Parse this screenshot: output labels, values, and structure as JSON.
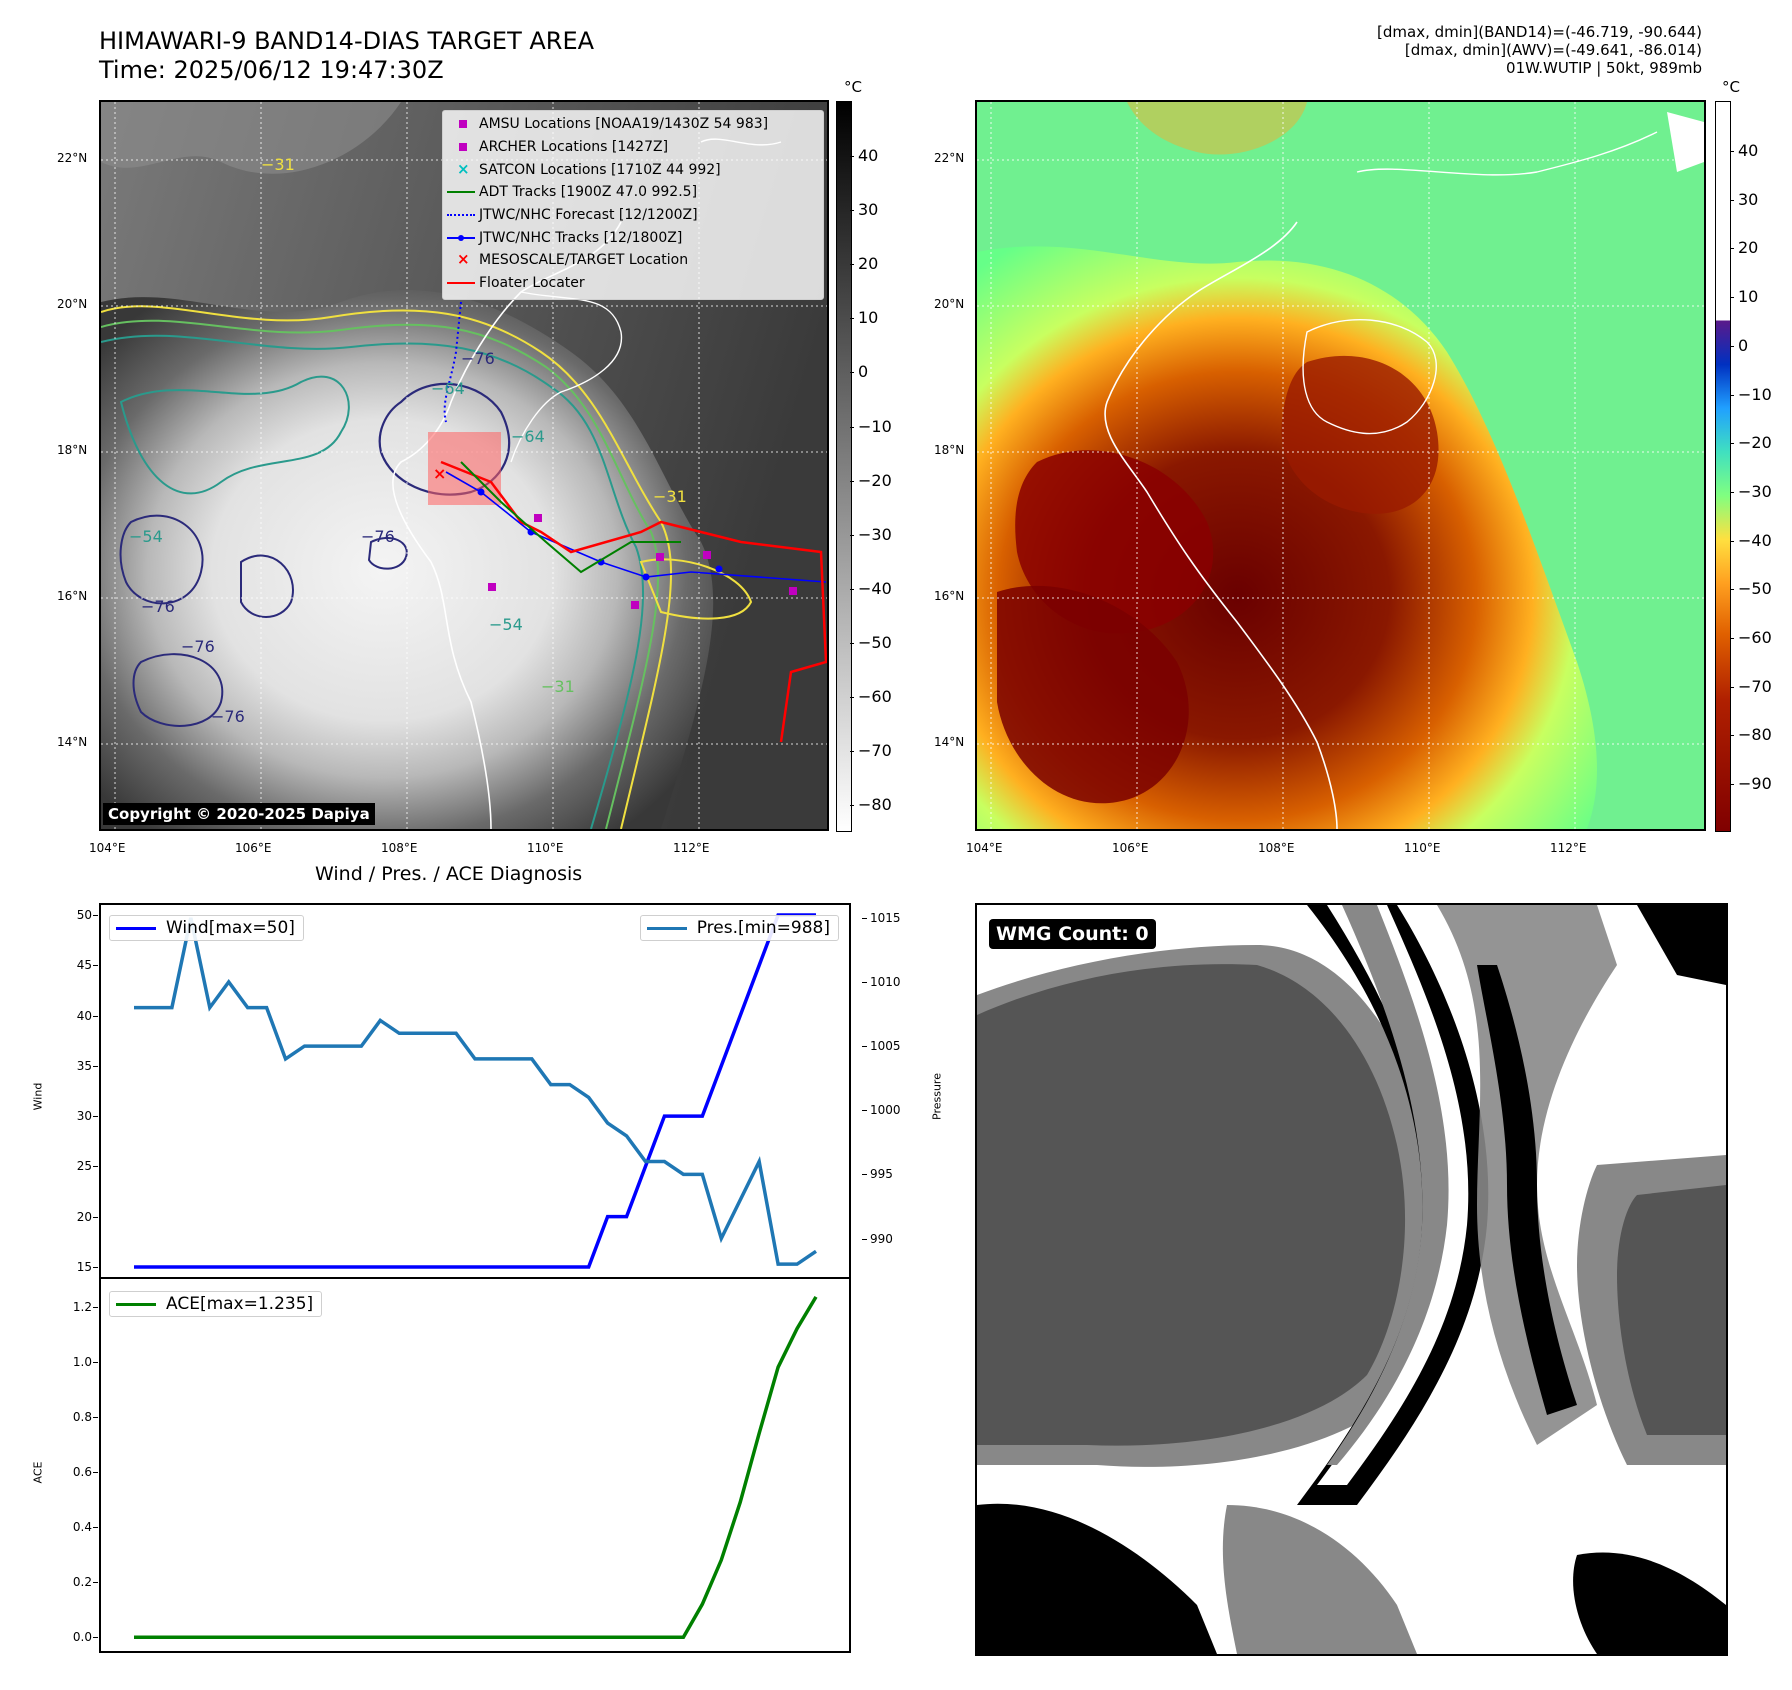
{
  "header": {
    "title_line1": "HIMAWARI-9 BAND14-DIAS TARGET AREA",
    "title_line2": "Time: 2025/06/12 19:47:30Z",
    "info_line1": "[dmax, dmin](BAND14)=(-46.719, -90.644)",
    "info_line2": "[dmax, dmin](AWV)=(-49.641, -86.014)",
    "info_line3": "01W.WUTIP | 50kt, 989mb"
  },
  "map_left": {
    "lat_labels": [
      "22°N",
      "20°N",
      "18°N",
      "16°N",
      "14°N"
    ],
    "lon_labels": [
      "104°E",
      "106°E",
      "108°E",
      "110°E",
      "112°E"
    ],
    "colorbar_unit": "°C",
    "colorbar_ticks": [
      "40",
      "30",
      "20",
      "10",
      "0",
      "−10",
      "−20",
      "−30",
      "−40",
      "−50",
      "−60",
      "−70",
      "−80"
    ],
    "contour_labels": [
      "−76",
      "−64",
      "−64",
      "−54",
      "−76",
      "−76",
      "−76",
      "−76",
      "−54",
      "−31",
      "−31",
      "−31"
    ],
    "copyright": "Copyright © 2020-2025 Dapiya",
    "legend": [
      {
        "label": "AMSU Locations [NOAA19/1430Z 54 983]",
        "symbol": "square",
        "color": "#c000c0"
      },
      {
        "label": "ARCHER Locations [1427Z]",
        "symbol": "square",
        "color": "#c000c0"
      },
      {
        "label": "SATCON Locations [1710Z 44 992]",
        "symbol": "x",
        "color": "#00c0c0"
      },
      {
        "label": "ADT Tracks [1900Z 47.0 992.5]",
        "symbol": "line",
        "color": "#008000"
      },
      {
        "label": "JTWC/NHC Forecast [12/1200Z]",
        "symbol": "dotted",
        "color": "#0000ff"
      },
      {
        "label": "JTWC/NHC Tracks [12/1800Z]",
        "symbol": "line-dot",
        "color": "#0000ff"
      },
      {
        "label": "MESOSCALE/TARGET Location",
        "symbol": "x",
        "color": "#ff0000"
      },
      {
        "label": "Floater Locater",
        "symbol": "line",
        "color": "#ff0000"
      }
    ]
  },
  "map_right": {
    "lat_labels": [
      "22°N",
      "20°N",
      "18°N",
      "16°N",
      "14°N"
    ],
    "lon_labels": [
      "104°E",
      "106°E",
      "108°E",
      "110°E",
      "112°E"
    ],
    "colorbar_unit": "°C",
    "colorbar_ticks": [
      "40",
      "30",
      "20",
      "10",
      "0",
      "−10",
      "−20",
      "−30",
      "−40",
      "−50",
      "−60",
      "−70",
      "−80",
      "−90"
    ]
  },
  "diagnosis": {
    "title": "Wind / Pres. / ACE Diagnosis",
    "wind_legend": "Wind[max=50]",
    "pres_legend": "Pres.[min=988]",
    "ace_legend": "ACE[max=1.235]",
    "wind_ylabel": "Wind",
    "pres_ylabel": "Pressure",
    "ace_ylabel": "ACE"
  },
  "wmg": {
    "label": "WMG Count: 0"
  },
  "colors": {
    "wind": "#0000ff",
    "pressure": "#1f77b4",
    "ace": "#008000"
  },
  "chart_data": [
    {
      "type": "line",
      "title": "Wind / Pres. / ACE Diagnosis",
      "x_index": [
        0,
        1,
        2,
        3,
        4,
        5,
        6,
        7,
        8,
        9,
        10,
        11,
        12,
        13,
        14,
        15,
        16,
        17,
        18,
        19,
        20,
        21,
        22,
        23,
        24,
        25,
        26,
        27,
        28,
        29,
        30,
        31,
        32,
        33,
        34,
        35,
        36
      ],
      "series": [
        {
          "name": "Wind[max=50]",
          "axis": "left",
          "values": [
            15,
            15,
            15,
            15,
            15,
            15,
            15,
            15,
            15,
            15,
            15,
            15,
            15,
            15,
            15,
            15,
            15,
            15,
            15,
            15,
            15,
            15,
            15,
            15,
            15,
            20,
            20,
            25,
            30,
            30,
            30,
            35,
            40,
            45,
            50,
            50,
            50
          ]
        },
        {
          "name": "Pres.[min=988]",
          "axis": "right",
          "values": [
            1008,
            1008,
            1008,
            1015,
            1008,
            1010,
            1008,
            1008,
            1004,
            1005,
            1005,
            1005,
            1005,
            1007,
            1006,
            1006,
            1006,
            1006,
            1004,
            1004,
            1004,
            1004,
            1002,
            1002,
            1001,
            999,
            998,
            996,
            996,
            995,
            995,
            990,
            993,
            996,
            988,
            988,
            989
          ]
        }
      ],
      "ylim_left": [
        14,
        51
      ],
      "ylim_right": [
        987,
        1016
      ],
      "yticks_left": [
        15,
        20,
        25,
        30,
        35,
        40,
        45,
        50
      ],
      "yticks_right": [
        990,
        995,
        1000,
        1005,
        1010,
        1015
      ]
    },
    {
      "type": "line",
      "x_index": [
        0,
        1,
        2,
        3,
        4,
        5,
        6,
        7,
        8,
        9,
        10,
        11,
        12,
        13,
        14,
        15,
        16,
        17,
        18,
        19,
        20,
        21,
        22,
        23,
        24,
        25,
        26,
        27,
        28,
        29,
        30,
        31,
        32,
        33,
        34,
        35,
        36
      ],
      "series": [
        {
          "name": "ACE[max=1.235]",
          "values": [
            0,
            0,
            0,
            0,
            0,
            0,
            0,
            0,
            0,
            0,
            0,
            0,
            0,
            0,
            0,
            0,
            0,
            0,
            0,
            0,
            0,
            0,
            0,
            0,
            0,
            0,
            0,
            0,
            0,
            0,
            0.12,
            0.28,
            0.49,
            0.74,
            0.98,
            1.12,
            1.235
          ]
        }
      ],
      "ylim": [
        -0.05,
        1.3
      ],
      "yticks": [
        0.0,
        0.2,
        0.4,
        0.6,
        0.8,
        1.0,
        1.2
      ]
    }
  ]
}
